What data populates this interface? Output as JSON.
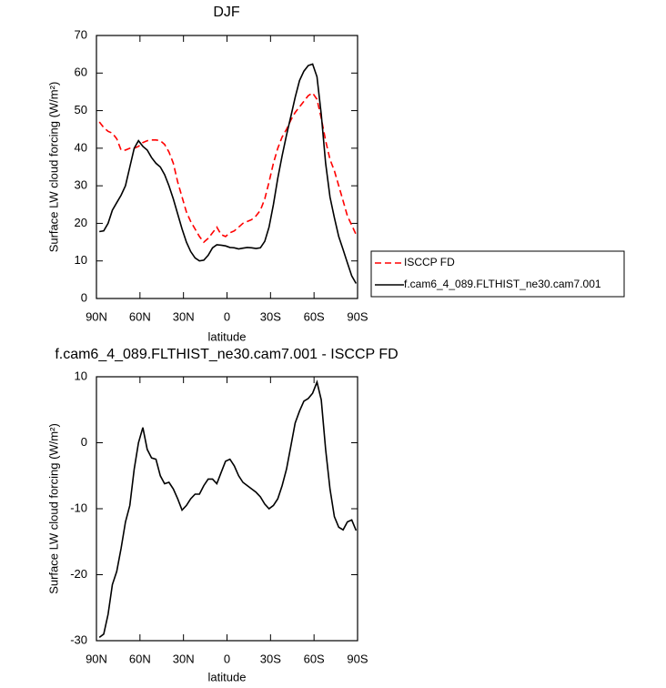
{
  "chart_data": [
    {
      "type": "line",
      "title": "DJF",
      "xlabel": "latitude",
      "ylabel": "Surface LW cloud forcing (W/m²)",
      "x": [
        88,
        85,
        82,
        79,
        76,
        73,
        70,
        67,
        64,
        61,
        58,
        55,
        52,
        49,
        46,
        43,
        40,
        37,
        34,
        31,
        28,
        25,
        22,
        19,
        16,
        13,
        10,
        7,
        4,
        1,
        -2,
        -5,
        -8,
        -11,
        -14,
        -17,
        -20,
        -23,
        -26,
        -29,
        -32,
        -35,
        -38,
        -41,
        -44,
        -47,
        -50,
        -53,
        -56,
        -59,
        -62,
        -65,
        -68,
        -71,
        -74,
        -77,
        -80,
        -83,
        -86,
        -89
      ],
      "series": [
        {
          "name": "ISCCP FD",
          "color": "#ff0000",
          "linestyle": "dashed",
          "values": [
            47,
            45.5,
            44.5,
            44,
            42.5,
            39.5,
            39.5,
            40,
            40,
            40.5,
            41.5,
            42,
            42.2,
            42.2,
            42,
            41,
            39,
            36,
            31,
            27,
            23,
            20.5,
            18.5,
            16.5,
            15,
            16,
            17.5,
            19,
            17,
            16.5,
            17.5,
            18,
            19,
            20,
            20.5,
            21,
            22,
            23.5,
            26.5,
            31,
            36,
            40,
            43,
            45,
            47.5,
            49.5,
            51,
            52.5,
            54,
            54.7,
            53,
            48,
            42,
            37,
            34,
            30,
            26,
            22,
            19.5,
            17
          ]
        },
        {
          "name": "f.cam6_4_089.FLTHIST_ne30.cam7.001",
          "color": "#000000",
          "linestyle": "solid",
          "values": [
            17.8,
            18,
            20,
            23.5,
            25.5,
            27.5,
            30,
            35,
            40,
            42,
            40.5,
            39.5,
            37.5,
            36,
            35,
            33,
            30,
            26.5,
            22.5,
            18.5,
            15,
            12.5,
            10.8,
            10,
            10.2,
            11.5,
            13.5,
            14.3,
            14.2,
            14,
            13.6,
            13.5,
            13.2,
            13.4,
            13.6,
            13.5,
            13.3,
            13.5,
            15.2,
            19,
            25,
            32,
            38,
            43.5,
            48.5,
            53.5,
            58,
            60.5,
            62,
            62.4,
            59,
            49,
            36,
            27,
            21.5,
            16.5,
            13,
            9.5,
            6,
            4
          ]
        }
      ],
      "xlim": [
        90,
        -90
      ],
      "xticks": [
        {
          "value": 90,
          "label": "90N"
        },
        {
          "value": 60,
          "label": "60N"
        },
        {
          "value": 30,
          "label": "30N"
        },
        0,
        {
          "value": -30,
          "label": "30S"
        },
        {
          "value": -60,
          "label": "60S"
        },
        {
          "value": -90,
          "label": "90S"
        }
      ],
      "ylim": [
        0,
        70
      ],
      "yticks": [
        0,
        10,
        20,
        30,
        40,
        50,
        60,
        70
      ],
      "grid": false,
      "legend": "outside-right"
    },
    {
      "type": "line",
      "title": "f.cam6_4_089.FLTHIST_ne30.cam7.001 - ISCCP FD",
      "xlabel": "latitude",
      "ylabel": "Surface LW cloud forcing (W/m²)",
      "x": [
        88,
        85,
        82,
        79,
        76,
        73,
        70,
        67,
        64,
        61,
        58,
        55,
        52,
        49,
        46,
        43,
        40,
        37,
        34,
        31,
        28,
        25,
        22,
        19,
        16,
        13,
        10,
        7,
        4,
        1,
        -2,
        -5,
        -8,
        -11,
        -14,
        -17,
        -20,
        -23,
        -26,
        -29,
        -32,
        -35,
        -38,
        -41,
        -44,
        -47,
        -50,
        -53,
        -56,
        -59,
        -62,
        -65,
        -68,
        -71,
        -74,
        -77,
        -80,
        -83,
        -86,
        -89
      ],
      "values": [
        -29.5,
        -29,
        -26,
        -21.5,
        -19.5,
        -16,
        -12,
        -9.5,
        -4,
        0,
        2.3,
        -1,
        -2.3,
        -2.5,
        -5,
        -6.2,
        -6,
        -7,
        -8.5,
        -10.2,
        -9.5,
        -8.5,
        -7.8,
        -7.8,
        -6.5,
        -5.5,
        -5.5,
        -6.2,
        -4.5,
        -2.8,
        -2.5,
        -3.5,
        -5,
        -6,
        -6.5,
        -7,
        -7.5,
        -8.2,
        -9.3,
        -10,
        -9.5,
        -8.5,
        -6.5,
        -4,
        -0.5,
        3,
        4.8,
        6.3,
        6.7,
        7.5,
        9.2,
        6.5,
        -1,
        -7,
        -11.2,
        -12.8,
        -13.2,
        -12,
        -11.7,
        -13.3
      ],
      "color": "#000000",
      "xlim": [
        90,
        -90
      ],
      "xticks": [
        {
          "value": 90,
          "label": "90N"
        },
        {
          "value": 60,
          "label": "60N"
        },
        {
          "value": 30,
          "label": "30N"
        },
        0,
        {
          "value": -30,
          "label": "30S"
        },
        {
          "value": -60,
          "label": "60S"
        },
        {
          "value": -90,
          "label": "90S"
        }
      ],
      "ylim": [
        -30,
        10
      ],
      "yticks": [
        -30,
        -20,
        -10,
        0,
        10
      ],
      "grid": false
    }
  ]
}
